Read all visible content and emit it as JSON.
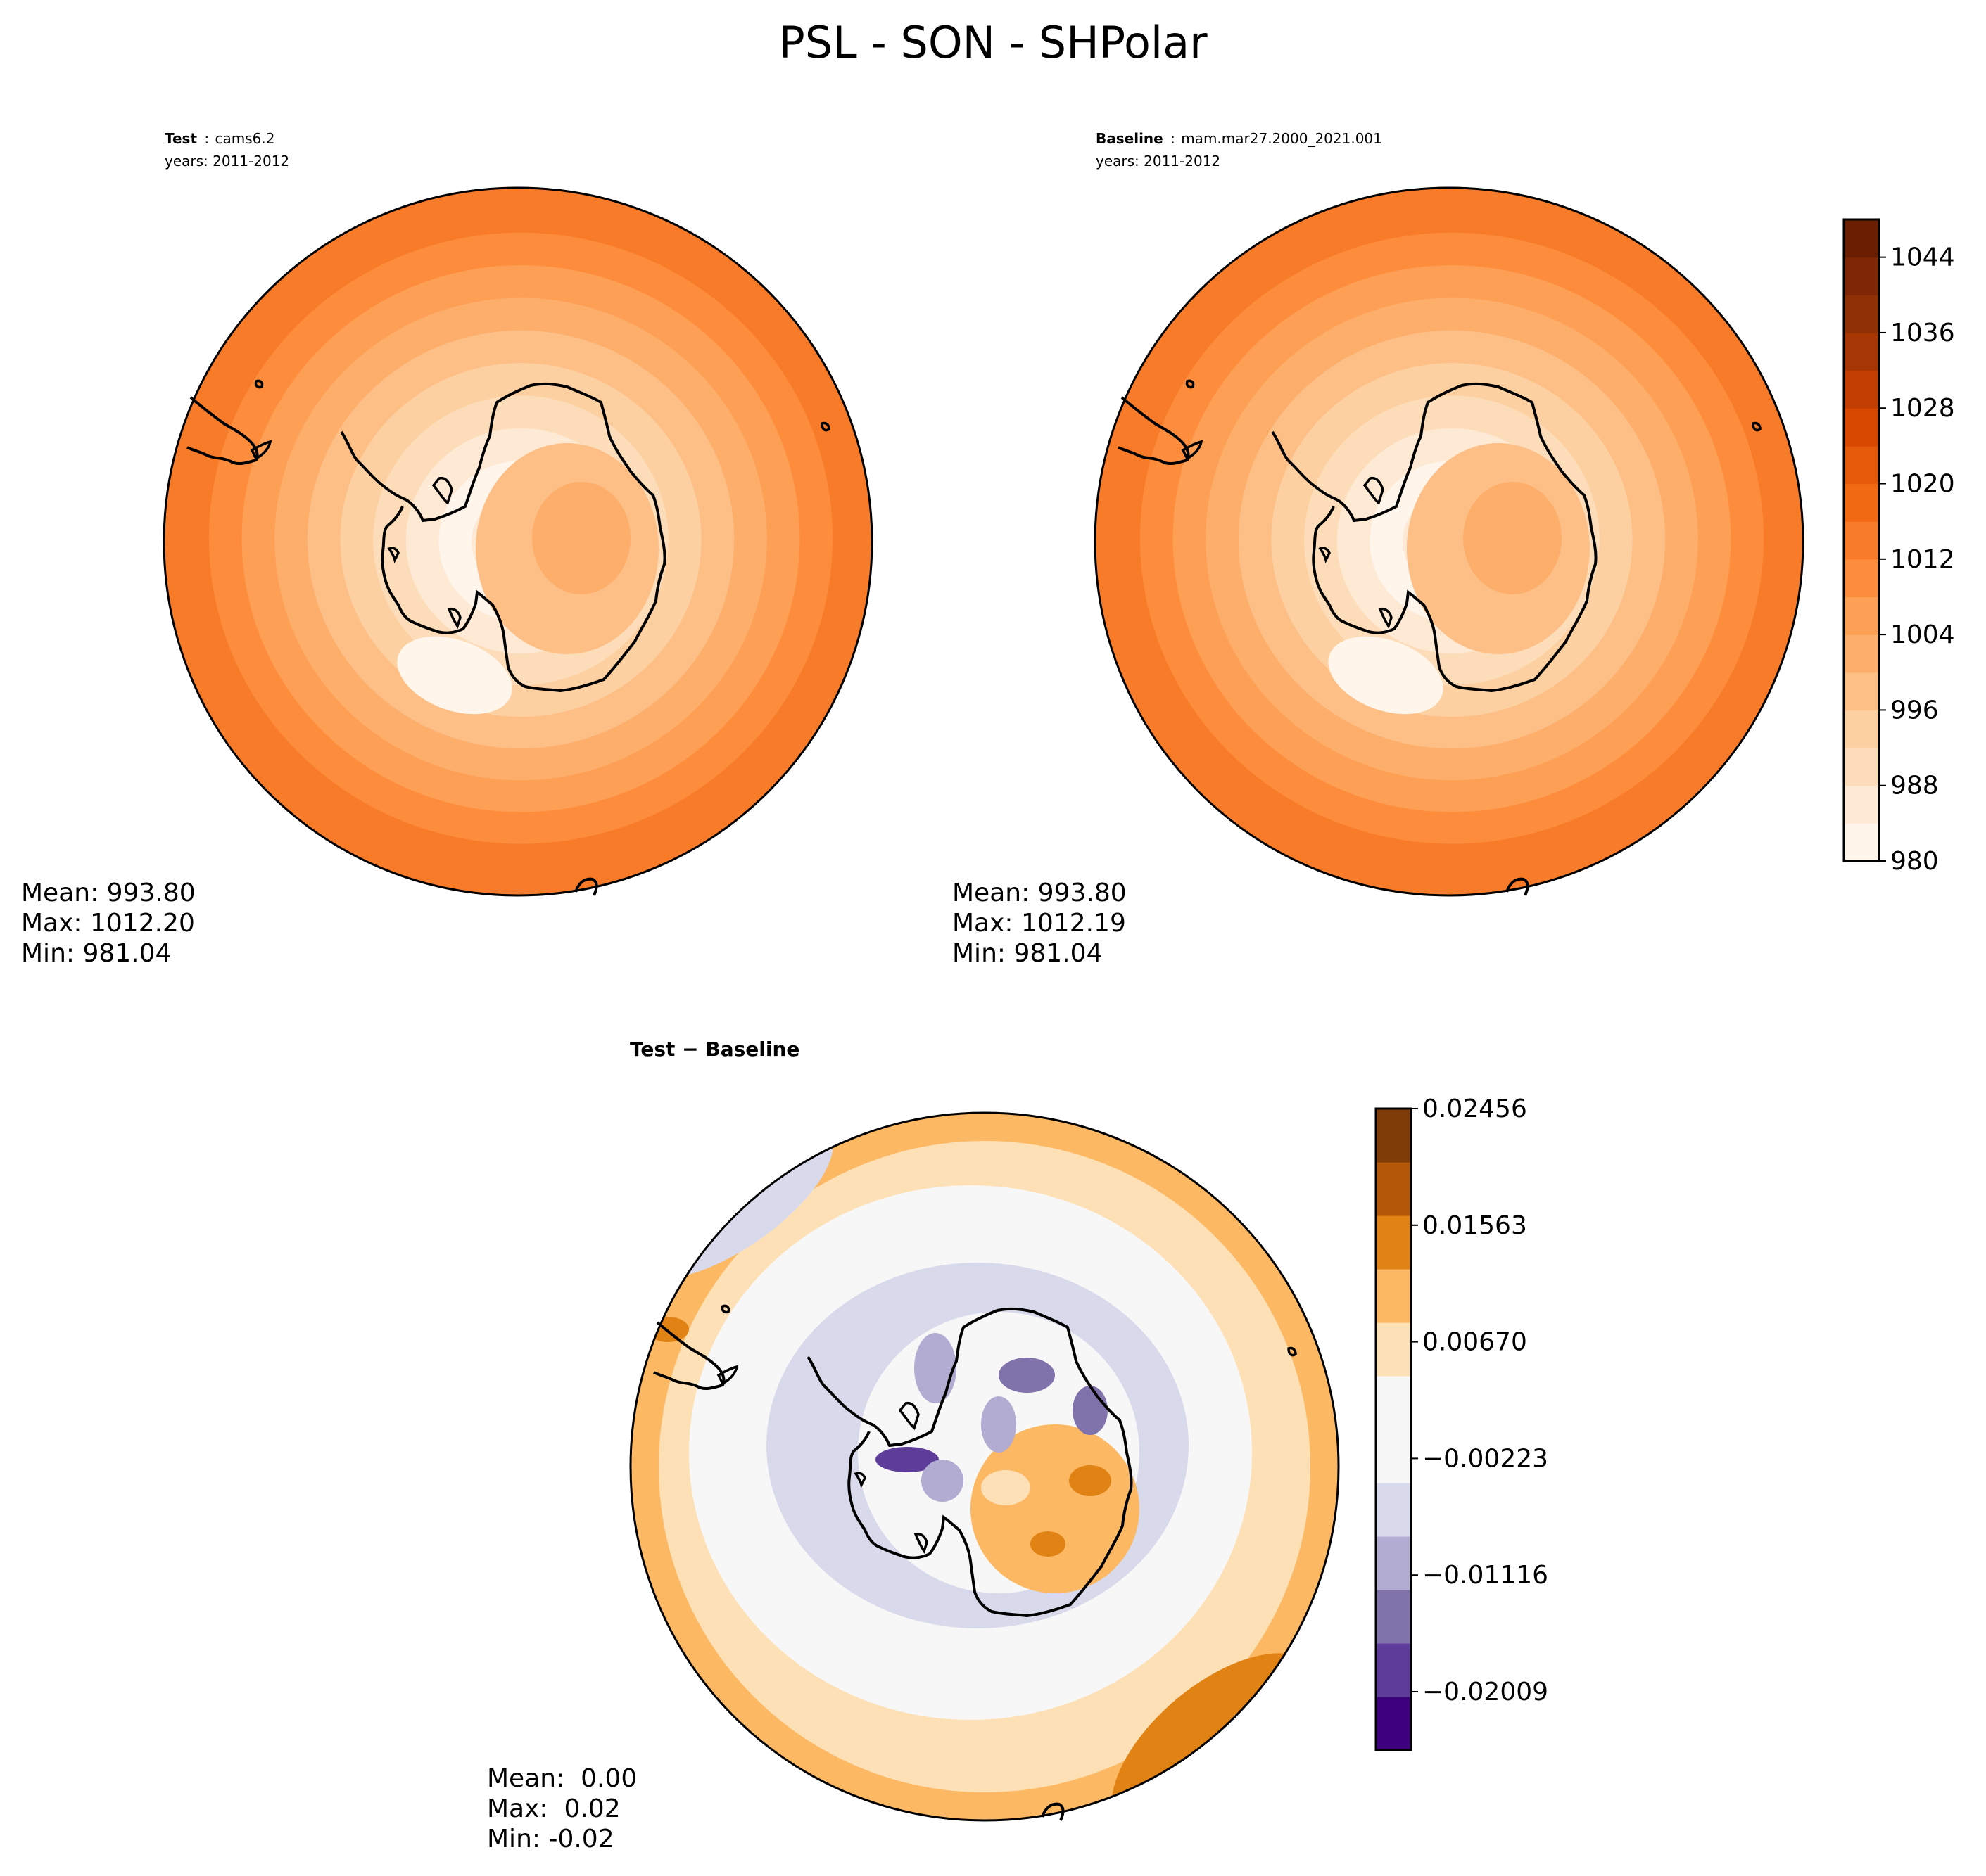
{
  "figure": {
    "title": "PSL - SON - SHPolar"
  },
  "chart_data": [
    {
      "type": "heatmap",
      "projection": "south-polar-stereographic",
      "header": {
        "label": "Test",
        "sep": ":",
        "case": "cams6.2",
        "years": "years: 2011-2012"
      },
      "stats": {
        "mean": "Mean: 993.80",
        "max": "Max: 1012.20",
        "min": "Min: 981.04"
      },
      "field": {
        "center_value": 996,
        "ring_values": [
          988,
          984,
          981,
          984,
          988,
          992,
          996,
          1000,
          1004,
          1008,
          1012
        ]
      }
    },
    {
      "type": "heatmap",
      "projection": "south-polar-stereographic",
      "header": {
        "label": "Baseline",
        "sep": ":",
        "case": "mam.mar27.2000_2021.001",
        "years": "years: 2011-2012"
      },
      "stats": {
        "mean": "Mean: 993.80",
        "max": "Max: 1012.19",
        "min": "Min: 981.04"
      },
      "field": {
        "center_value": 996,
        "ring_values": [
          988,
          984,
          981,
          984,
          988,
          992,
          996,
          1000,
          1004,
          1008,
          1012
        ]
      }
    },
    {
      "type": "heatmap",
      "projection": "south-polar-stereographic",
      "header": {
        "label": "Test − Baseline"
      },
      "stats": {
        "mean": "Mean:  0.00",
        "max": "Max:  0.02",
        "min": "Min: -0.02"
      }
    }
  ],
  "colorbars": {
    "absolute": {
      "min": 980,
      "max": 1048,
      "step": 4,
      "ticks": [
        980,
        988,
        996,
        1004,
        1012,
        1020,
        1028,
        1036,
        1044
      ],
      "tick_labels": [
        "980",
        "988",
        "996",
        "1004",
        "1012",
        "1020",
        "1028",
        "1036",
        "1044"
      ],
      "colors": [
        "#fff5eb",
        "#fee9d4",
        "#fdddb9",
        "#fdd0a1",
        "#fdbf86",
        "#fdae6b",
        "#fd9f55",
        "#fd8d3c",
        "#f77b28",
        "#f16913",
        "#e55a0a",
        "#d94801",
        "#c23f02",
        "#a63603",
        "#8f3104",
        "#7f2704",
        "#6a1f03"
      ]
    },
    "difference": {
      "min": -0.02456,
      "max": 0.02456,
      "ticks": [
        -0.02009,
        -0.01116,
        -0.00223,
        0.0067,
        0.01563,
        0.02456
      ],
      "tick_labels": [
        "−0.02009",
        "−0.01116",
        "−0.00223",
        "0.00670",
        "0.01563",
        "0.02456"
      ],
      "colors": [
        "#3f007d",
        "#5e3c99",
        "#8073ac",
        "#b2abd2",
        "#d8daeb",
        "#f7f7f7",
        "#f7f7f7",
        "#fee0b6",
        "#fdb863",
        "#e08214",
        "#b35806",
        "#7f3b08"
      ]
    }
  }
}
